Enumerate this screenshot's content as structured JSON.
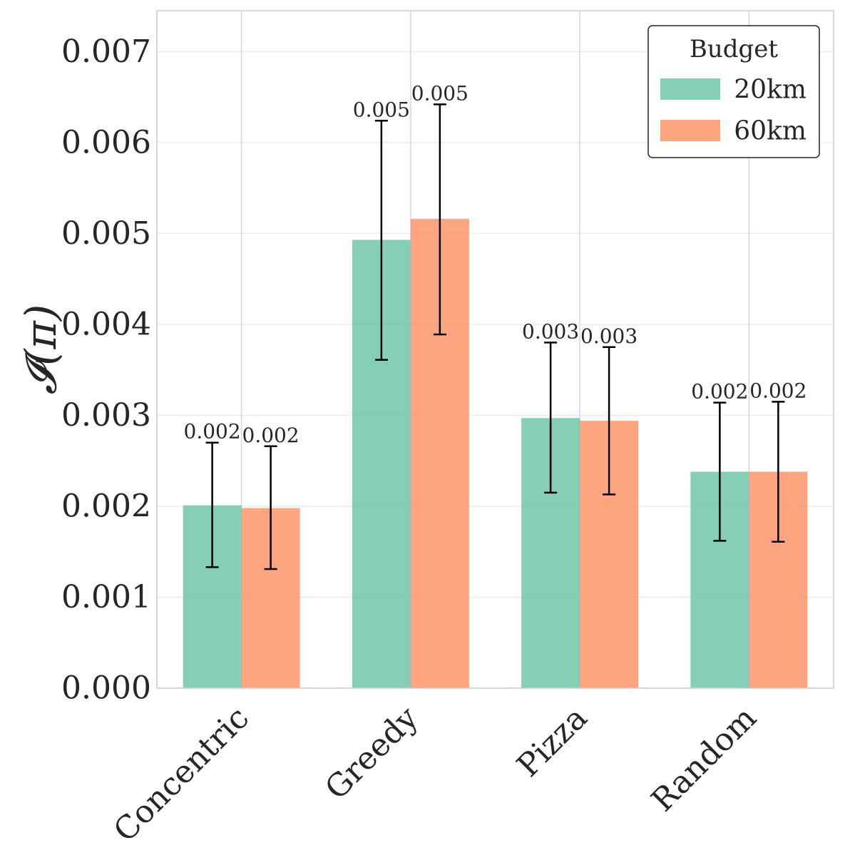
{
  "chart_data": {
    "type": "bar",
    "categories": [
      "Concentric",
      "Greedy",
      "Pizza",
      "Random"
    ],
    "series": [
      {
        "name": "20km",
        "color": "#66c2a5",
        "values": [
          0.00201,
          0.00493,
          0.00297,
          0.00238
        ],
        "err_low": [
          0.00133,
          0.00361,
          0.00215,
          0.00162
        ],
        "err_high": [
          0.0027,
          0.00624,
          0.0038,
          0.00314
        ],
        "labels": [
          "0.002",
          "0.005",
          "0.003",
          "0.002"
        ]
      },
      {
        "name": "60km",
        "color": "#fc8d62",
        "values": [
          0.00198,
          0.00516,
          0.00294,
          0.00238
        ],
        "err_low": [
          0.00131,
          0.00389,
          0.00213,
          0.00161
        ],
        "err_high": [
          0.00266,
          0.00642,
          0.00375,
          0.00315
        ],
        "labels": [
          "0.002",
          "0.005",
          "0.003",
          "0.002"
        ]
      }
    ],
    "ylabel": "𝓘(π)",
    "ylim": [
      0,
      0.00745
    ],
    "yticks": [
      "0.000",
      "0.001",
      "0.002",
      "0.003",
      "0.004",
      "0.005",
      "0.006",
      "0.007"
    ],
    "legend": {
      "title": "Budget",
      "position": "top-right"
    },
    "grid": true
  }
}
